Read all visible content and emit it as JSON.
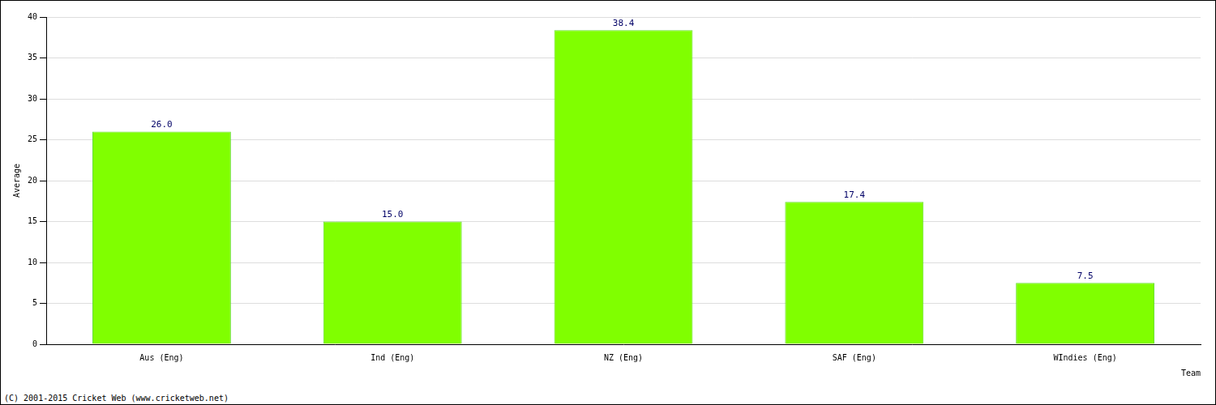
{
  "chart_data": {
    "type": "bar",
    "x_label": "Team",
    "y_label": "Average",
    "annotations": [
      "(C) 2001-2015 Cricket Web (www.cricketweb.net)"
    ],
    "categories": [
      "Aus (Eng)",
      "Ind (Eng)",
      "NZ (Eng)",
      "SAF (Eng)",
      "WIndies (Eng)"
    ],
    "values": [
      26.0,
      15.0,
      38.4,
      17.4,
      7.5
    ],
    "value_labels": [
      "26.0",
      "15.0",
      "38.4",
      "17.4",
      "7.5"
    ],
    "color": "#80ff00",
    "ylim": [
      0,
      40
    ],
    "yticks": [
      0,
      5,
      10,
      15,
      20,
      25,
      30,
      35,
      40
    ],
    "grid": true,
    "data_labels": true
  }
}
